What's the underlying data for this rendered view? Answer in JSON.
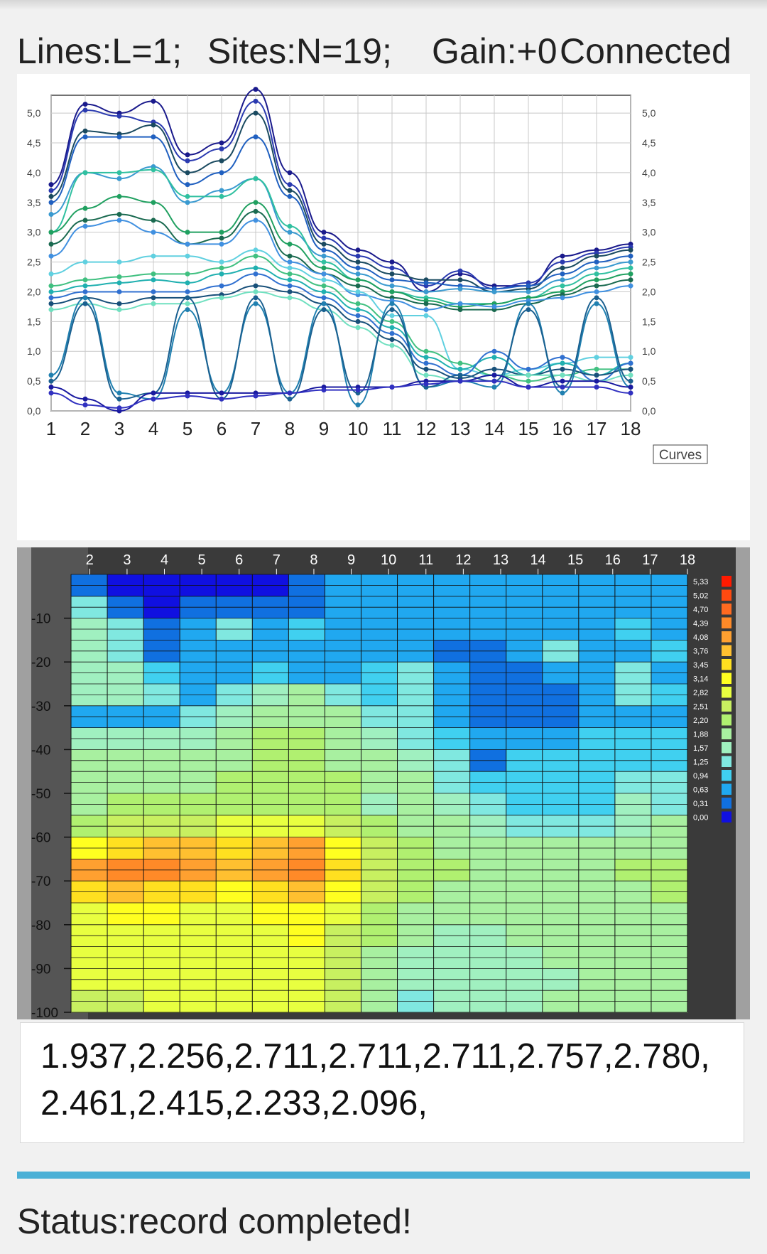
{
  "header": {
    "lines": "Lines:L=1;",
    "sites": "Sites:N=19;",
    "gain": "Gain:+0",
    "connection": "Connected"
  },
  "colors": {
    "accent": "#4ab0d6",
    "progress_track": "#d0e9f3",
    "heatmap_frame": "#3a3a3a"
  },
  "chart_data": [
    {
      "type": "line",
      "legend_label": "Curves",
      "x": [
        1,
        2,
        3,
        4,
        5,
        6,
        7,
        8,
        9,
        10,
        11,
        12,
        13,
        14,
        15,
        16,
        17,
        18
      ],
      "xlim": [
        1,
        18
      ],
      "ylim": [
        0,
        5.3
      ],
      "y_ticks": [
        "0,0",
        "0,5",
        "1,0",
        "1,5",
        "2,0",
        "2,5",
        "3,0",
        "3,5",
        "4,0",
        "4,5",
        "5,0"
      ],
      "grid": true,
      "series": [
        {
          "values": [
            3.8,
            5.15,
            5.0,
            5.2,
            4.3,
            4.5,
            5.4,
            4.0,
            3.0,
            2.7,
            2.5,
            2.0,
            2.3,
            2.1,
            2.1,
            2.6,
            2.7,
            2.8
          ]
        },
        {
          "values": [
            3.7,
            5.05,
            4.95,
            4.85,
            4.2,
            4.4,
            5.2,
            3.8,
            2.9,
            2.6,
            2.4,
            2.1,
            2.35,
            2.05,
            2.15,
            2.5,
            2.65,
            2.75
          ]
        },
        {
          "values": [
            3.6,
            4.7,
            4.65,
            4.8,
            4.0,
            4.2,
            5.0,
            3.7,
            2.8,
            2.5,
            2.3,
            2.2,
            2.2,
            2.0,
            2.05,
            2.4,
            2.6,
            2.7
          ]
        },
        {
          "values": [
            3.5,
            4.6,
            4.6,
            4.6,
            3.8,
            4.0,
            4.6,
            3.6,
            2.7,
            2.4,
            2.2,
            2.15,
            2.1,
            2.05,
            2.1,
            2.3,
            2.5,
            2.6
          ]
        },
        {
          "values": [
            3.3,
            4.0,
            3.9,
            4.1,
            3.5,
            3.7,
            3.9,
            3.0,
            2.6,
            2.3,
            2.1,
            2.0,
            2.05,
            2.0,
            2.0,
            2.2,
            2.4,
            2.5
          ]
        },
        {
          "values": [
            3.0,
            4.0,
            4.0,
            4.05,
            3.6,
            3.6,
            3.9,
            3.1,
            2.5,
            2.2,
            2.0,
            1.9,
            1.8,
            1.8,
            1.9,
            2.1,
            2.3,
            2.4
          ]
        },
        {
          "values": [
            3.0,
            3.4,
            3.6,
            3.5,
            3.0,
            3.0,
            3.5,
            2.8,
            2.4,
            2.2,
            2.0,
            1.85,
            1.75,
            1.8,
            1.9,
            2.0,
            2.2,
            2.3
          ]
        },
        {
          "values": [
            2.8,
            3.2,
            3.3,
            3.2,
            2.8,
            2.9,
            3.35,
            2.6,
            2.3,
            2.1,
            1.9,
            1.8,
            1.7,
            1.7,
            1.8,
            1.95,
            2.1,
            2.2
          ]
        },
        {
          "values": [
            2.6,
            3.1,
            3.2,
            3.0,
            2.8,
            2.8,
            3.2,
            2.5,
            2.3,
            1.95,
            1.85,
            1.7,
            1.8,
            1.75,
            1.85,
            1.9,
            2.0,
            2.1
          ]
        },
        {
          "values": [
            2.3,
            2.5,
            2.5,
            2.6,
            2.6,
            2.5,
            2.7,
            2.4,
            2.2,
            2.0,
            1.6,
            1.6,
            0.7,
            0.6,
            0.7,
            0.8,
            0.9,
            0.9
          ]
        },
        {
          "values": [
            2.1,
            2.2,
            2.25,
            2.3,
            2.3,
            2.4,
            2.6,
            2.3,
            2.1,
            1.8,
            1.5,
            1.0,
            0.8,
            0.6,
            0.5,
            0.6,
            0.7,
            0.7
          ]
        },
        {
          "values": [
            2.0,
            2.1,
            2.15,
            2.2,
            2.15,
            2.3,
            2.4,
            2.2,
            2.0,
            1.7,
            1.4,
            0.9,
            0.7,
            0.9,
            0.6,
            0.8,
            0.6,
            0.8
          ]
        },
        {
          "values": [
            1.9,
            2.0,
            2.0,
            2.0,
            2.0,
            2.1,
            2.3,
            2.1,
            1.9,
            1.6,
            1.3,
            0.8,
            0.6,
            1.0,
            0.7,
            0.9,
            0.5,
            0.8
          ]
        },
        {
          "values": [
            1.8,
            1.9,
            1.8,
            1.9,
            1.9,
            1.95,
            2.1,
            2.0,
            1.8,
            1.5,
            1.2,
            0.7,
            0.55,
            0.7,
            0.6,
            0.7,
            0.6,
            0.7
          ]
        },
        {
          "values": [
            1.7,
            1.8,
            1.7,
            1.8,
            1.8,
            1.9,
            2.0,
            1.9,
            1.7,
            1.4,
            1.1,
            0.6,
            0.5,
            0.6,
            0.6,
            0.6,
            0.5,
            0.6
          ]
        },
        {
          "values": [
            0.6,
            1.9,
            0.3,
            0.2,
            1.7,
            0.3,
            1.8,
            0.3,
            1.8,
            0.1,
            1.8,
            0.4,
            0.5,
            0.4,
            1.8,
            0.3,
            1.8,
            0.4
          ]
        },
        {
          "values": [
            0.5,
            1.8,
            0.2,
            0.3,
            1.9,
            0.2,
            1.9,
            0.2,
            1.7,
            0.3,
            1.7,
            0.4,
            0.6,
            0.5,
            1.7,
            0.4,
            1.9,
            0.5
          ]
        },
        {
          "values": [
            0.4,
            0.2,
            0.0,
            0.3,
            0.3,
            0.3,
            0.3,
            0.3,
            0.4,
            0.4,
            0.4,
            0.5,
            0.5,
            0.6,
            0.4,
            0.5,
            0.5,
            0.4
          ]
        },
        {
          "values": [
            0.3,
            0.1,
            0.05,
            0.2,
            0.25,
            0.2,
            0.25,
            0.3,
            0.35,
            0.35,
            0.4,
            0.45,
            0.5,
            0.5,
            0.4,
            0.4,
            0.4,
            0.3
          ]
        }
      ]
    },
    {
      "type": "heatmap",
      "x_ticks": [
        "2",
        "3",
        "4",
        "5",
        "6",
        "7",
        "8",
        "9",
        "10",
        "11",
        "12",
        "13",
        "14",
        "15",
        "16",
        "17",
        "18"
      ],
      "y_ticks": [
        "-10",
        "-20",
        "-30",
        "-40",
        "-50",
        "-60",
        "-70",
        "-80",
        "-90",
        "-100"
      ],
      "xlim": [
        1.5,
        18
      ],
      "ylim": [
        0,
        -100
      ],
      "scale_labels": [
        "5,33",
        "5,02",
        "4,70",
        "4,39",
        "4,08",
        "3,76",
        "3,45",
        "3,14",
        "2,82",
        "2,51",
        "2,20",
        "1,88",
        "1,57",
        "1,25",
        "0,94",
        "0,63",
        "0,31",
        "0,00"
      ],
      "scale_colors": [
        "#ff1a00",
        "#ff4a10",
        "#ff6a20",
        "#ff8a28",
        "#ffa030",
        "#ffc030",
        "#ffe020",
        "#ffff20",
        "#e8ff40",
        "#c8f060",
        "#b0f070",
        "#a8f0a0",
        "#a0f0c0",
        "#80e8e0",
        "#40d0f0",
        "#20a8f0",
        "#1070e0",
        "#1010e0"
      ],
      "rows": [
        [
          0.2,
          0.0,
          0.0,
          0.1,
          0.1,
          0.1,
          0.3,
          0.7,
          0.6,
          0.6,
          0.6,
          0.6,
          0.6,
          0.6,
          0.6,
          0.6,
          0.6
        ],
        [
          1.3,
          0.2,
          0.1,
          0.2,
          0.3,
          0.2,
          0.3,
          0.5,
          0.6,
          0.6,
          0.6,
          0.6,
          0.6,
          0.6,
          0.6,
          0.6,
          0.6
        ],
        [
          1.6,
          1.4,
          0.2,
          0.5,
          1.2,
          0.6,
          1.0,
          0.6,
          0.6,
          0.6,
          0.5,
          0.5,
          0.5,
          0.5,
          0.5,
          1.0,
          0.5
        ],
        [
          1.6,
          1.3,
          0.4,
          0.5,
          0.6,
          0.5,
          0.6,
          0.6,
          0.6,
          0.6,
          0.4,
          0.4,
          0.5,
          1.2,
          0.6,
          0.6,
          1.0
        ],
        [
          1.7,
          1.6,
          1.0,
          0.6,
          0.5,
          0.8,
          0.6,
          0.6,
          0.8,
          1.1,
          0.6,
          0.3,
          0.3,
          0.5,
          0.6,
          1.2,
          0.6
        ],
        [
          1.6,
          1.6,
          1.3,
          0.6,
          1.2,
          1.7,
          1.8,
          1.2,
          1.0,
          1.1,
          0.6,
          0.3,
          0.3,
          0.3,
          0.7,
          1.1,
          1.0
        ],
        [
          0.7,
          0.7,
          0.6,
          1.4,
          1.6,
          1.9,
          2.0,
          1.8,
          1.2,
          1.3,
          0.7,
          0.4,
          0.3,
          0.4,
          0.6,
          0.7,
          0.7
        ],
        [
          1.7,
          1.7,
          1.6,
          1.7,
          1.8,
          2.1,
          2.1,
          1.9,
          1.7,
          1.4,
          0.9,
          0.7,
          0.7,
          0.7,
          0.8,
          0.8,
          0.9
        ],
        [
          1.8,
          1.8,
          1.8,
          1.9,
          2.0,
          2.2,
          2.2,
          2.0,
          1.8,
          1.6,
          1.2,
          0.3,
          0.8,
          0.9,
          0.9,
          1.0,
          1.0
        ],
        [
          1.9,
          1.9,
          2.0,
          2.0,
          2.1,
          2.2,
          2.3,
          2.1,
          1.8,
          1.8,
          1.4,
          0.9,
          0.9,
          1.0,
          0.8,
          1.2,
          1.1
        ],
        [
          2.0,
          2.1,
          2.1,
          2.1,
          2.2,
          2.3,
          2.3,
          2.2,
          1.5,
          1.9,
          1.7,
          1.3,
          1.0,
          1.0,
          0.9,
          1.5,
          1.3
        ],
        [
          2.3,
          2.5,
          2.6,
          2.6,
          2.7,
          2.8,
          2.9,
          2.5,
          2.2,
          2.0,
          1.9,
          1.7,
          1.4,
          1.2,
          1.4,
          1.6,
          1.8
        ],
        [
          3.2,
          3.6,
          3.8,
          3.7,
          3.4,
          3.8,
          4.0,
          3.0,
          2.4,
          2.2,
          2.0,
          1.9,
          1.8,
          1.8,
          1.8,
          1.9,
          2.0
        ],
        [
          4.0,
          4.3,
          4.3,
          4.0,
          3.8,
          4.2,
          4.5,
          3.4,
          2.6,
          2.3,
          2.1,
          2.0,
          2.0,
          2.0,
          2.0,
          2.1,
          2.3
        ],
        [
          3.4,
          3.7,
          3.6,
          3.3,
          3.2,
          3.5,
          3.8,
          3.0,
          2.4,
          2.2,
          2.0,
          1.9,
          1.9,
          1.9,
          1.9,
          2.0,
          2.1
        ],
        [
          2.9,
          3.1,
          3.0,
          2.9,
          2.9,
          3.0,
          3.2,
          2.7,
          2.3,
          2.0,
          1.8,
          1.8,
          1.8,
          1.9,
          2.0,
          2.0,
          2.0
        ],
        [
          2.8,
          2.9,
          2.9,
          2.8,
          2.8,
          2.9,
          3.0,
          2.6,
          2.2,
          1.9,
          1.7,
          1.7,
          1.8,
          1.8,
          1.9,
          1.9,
          1.9
        ],
        [
          2.7,
          2.8,
          2.8,
          2.8,
          2.7,
          2.8,
          2.9,
          2.5,
          2.0,
          1.7,
          1.6,
          1.6,
          1.7,
          1.8,
          1.8,
          1.8,
          1.9
        ],
        [
          2.7,
          2.7,
          2.8,
          2.8,
          2.7,
          2.9,
          2.9,
          2.5,
          1.9,
          1.6,
          1.5,
          1.5,
          1.6,
          1.7,
          1.8,
          1.8,
          1.9
        ],
        [
          2.6,
          2.6,
          2.7,
          2.7,
          2.7,
          2.8,
          2.8,
          2.4,
          1.8,
          1.4,
          1.7,
          1.7,
          1.7,
          1.8,
          1.8,
          1.8,
          1.9
        ]
      ]
    }
  ],
  "readout": {
    "text": "1.937,2.256,2.711,2.711,2.711,2.757,2.780,2.461,2.415,2.233,2.096,"
  },
  "progress": {
    "value": 1.0
  },
  "status": {
    "text": "Status:record completed!"
  }
}
